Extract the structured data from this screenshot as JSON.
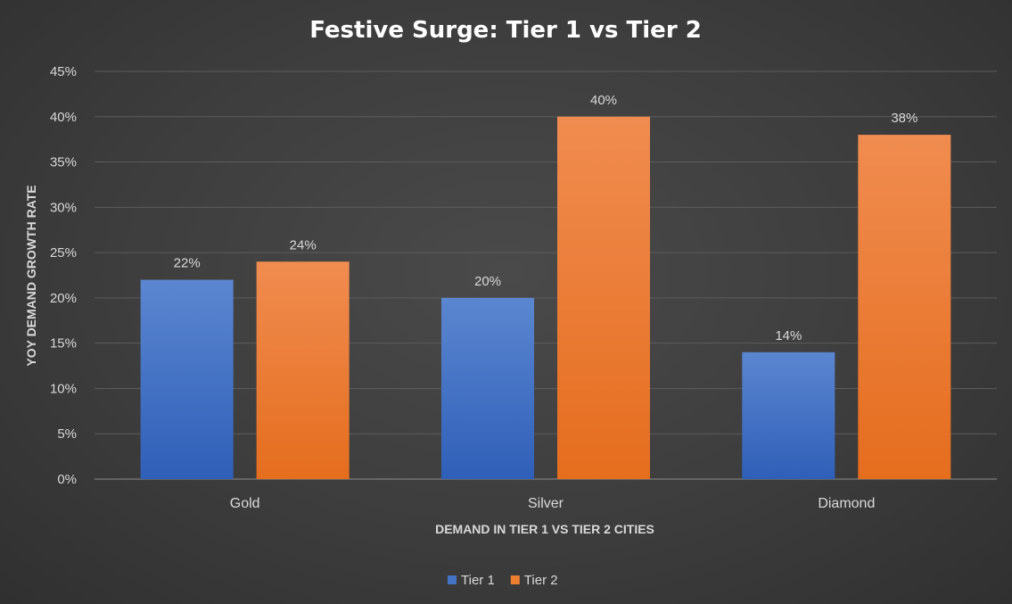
{
  "chart_data": {
    "type": "bar",
    "title": "Festive Surge: Tier 1 vs Tier 2",
    "xlabel": "DEMAND IN TIER 1 VS TIER 2 CITIES",
    "ylabel": "YOY DEMAND GROWTH RATE",
    "categories": [
      "Gold",
      "Silver",
      "Diamond"
    ],
    "series": [
      {
        "name": "Tier 1",
        "values": [
          22,
          20,
          14
        ],
        "labels": [
          "22%",
          "20%",
          "14%"
        ],
        "color": "#4472c4"
      },
      {
        "name": "Tier 2",
        "values": [
          24,
          40,
          38
        ],
        "labels": [
          "24%",
          "40%",
          "38%"
        ],
        "color": "#ed7d31"
      }
    ],
    "ylim": [
      0,
      45
    ],
    "yticks": [
      0,
      5,
      10,
      15,
      20,
      25,
      30,
      35,
      40,
      45
    ],
    "ytick_labels": [
      "0%",
      "5%",
      "10%",
      "15%",
      "20%",
      "25%",
      "30%",
      "35%",
      "40%",
      "45%"
    ],
    "grid": true,
    "legend_position": "bottom"
  }
}
